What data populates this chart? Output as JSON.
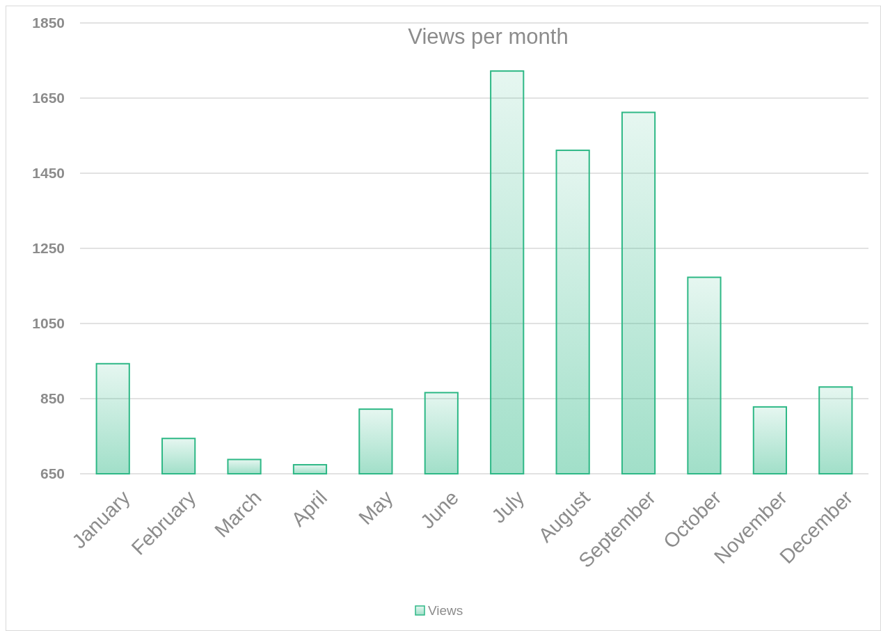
{
  "chart_data": {
    "type": "bar",
    "title": "Views per month",
    "categories": [
      "January",
      "February",
      "March",
      "April",
      "May",
      "June",
      "July",
      "August",
      "September",
      "October",
      "November",
      "December"
    ],
    "series": [
      {
        "name": "Views",
        "color": "#2eb886",
        "values": [
          943,
          744,
          688,
          674,
          822,
          866,
          1722,
          1511,
          1612,
          1173,
          828,
          881
        ]
      }
    ],
    "ylim": [
      650,
      1850
    ],
    "yticks": [
      650,
      850,
      1050,
      1250,
      1450,
      1650,
      1850
    ],
    "grid": "y",
    "legend": "bottom"
  }
}
